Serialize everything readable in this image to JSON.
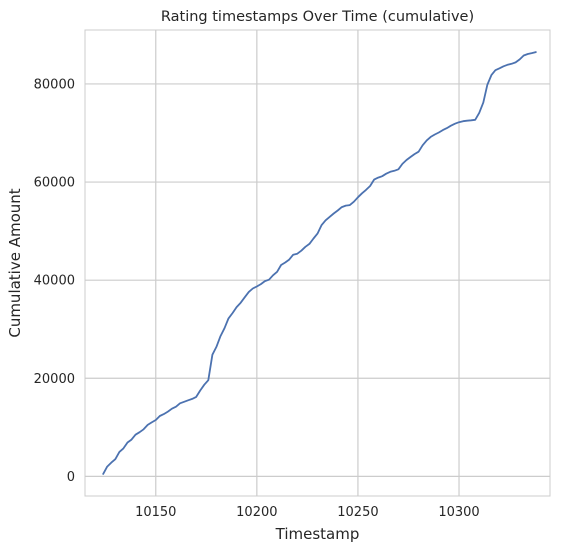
{
  "chart_data": {
    "type": "line",
    "title": "Rating timestamps Over Time (cumulative)",
    "xlabel": "Timestamp",
    "ylabel": "Cumulative Amount",
    "xlim": [
      10115,
      10345
    ],
    "ylim": [
      -4000,
      91000
    ],
    "grid": true,
    "legend": "none",
    "x_ticks": [
      10150,
      10200,
      10250,
      10300
    ],
    "x_tick_labels": [
      "10150",
      "10200",
      "10250",
      "10300"
    ],
    "y_ticks": [
      0,
      20000,
      40000,
      60000,
      80000
    ],
    "y_tick_labels": [
      "0",
      "20000",
      "40000",
      "60000",
      "80000"
    ],
    "colors": {
      "line": "#4c72b0",
      "grid": "#cccccc",
      "frame": "#cccccc"
    },
    "series": [
      {
        "x": [
          10124,
          10126,
          10128,
          10130,
          10132,
          10134,
          10136,
          10138,
          10140,
          10142,
          10144,
          10146,
          10148,
          10150,
          10152,
          10154,
          10156,
          10158,
          10160,
          10162,
          10164,
          10166,
          10168,
          10170,
          10172,
          10174,
          10176,
          10178,
          10180,
          10182,
          10184,
          10186,
          10188,
          10190,
          10192,
          10194,
          10196,
          10198,
          10200,
          10202,
          10204,
          10206,
          10208,
          10210,
          10212,
          10214,
          10216,
          10218,
          10220,
          10222,
          10224,
          10226,
          10228,
          10230,
          10232,
          10234,
          10236,
          10238,
          10240,
          10242,
          10244,
          10246,
          10248,
          10250,
          10252,
          10254,
          10256,
          10258,
          10260,
          10262,
          10264,
          10266,
          10268,
          10270,
          10272,
          10274,
          10276,
          10278,
          10280,
          10282,
          10284,
          10286,
          10288,
          10290,
          10292,
          10294,
          10296,
          10298,
          10300,
          10302,
          10304,
          10306,
          10308,
          10310,
          10312,
          10314,
          10316,
          10318,
          10320,
          10322,
          10324,
          10326,
          10328,
          10330,
          10332,
          10334,
          10336,
          10338
        ],
        "y": [
          500,
          2000,
          2800,
          3500,
          5000,
          5700,
          6900,
          7500,
          8500,
          9000,
          9600,
          10500,
          11000,
          11500,
          12300,
          12700,
          13200,
          13800,
          14200,
          14900,
          15200,
          15500,
          15800,
          16200,
          17500,
          18700,
          19600,
          24800,
          26400,
          28600,
          30200,
          32200,
          33300,
          34500,
          35400,
          36500,
          37600,
          38300,
          38700,
          39200,
          39800,
          40100,
          41000,
          41700,
          43100,
          43600,
          44200,
          45200,
          45400,
          46000,
          46800,
          47400,
          48500,
          49500,
          51200,
          52200,
          52900,
          53600,
          54200,
          54900,
          55200,
          55300,
          56000,
          56900,
          57700,
          58400,
          59200,
          60500,
          60900,
          61200,
          61700,
          62100,
          62300,
          62600,
          63700,
          64500,
          65100,
          65700,
          66200,
          67500,
          68500,
          69200,
          69700,
          70100,
          70600,
          71000,
          71500,
          71900,
          72200,
          72400,
          72500,
          72600,
          72700,
          74100,
          76200,
          79800,
          81800,
          82800,
          83200,
          83600,
          83900,
          84100,
          84400,
          85000,
          85800,
          86100,
          86300,
          86500
        ]
      }
    ]
  }
}
